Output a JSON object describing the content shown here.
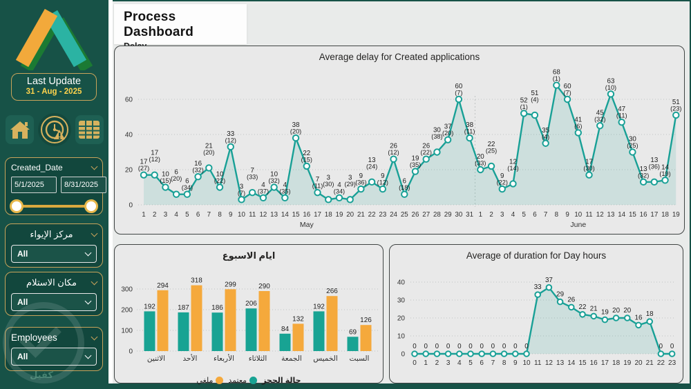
{
  "app": {
    "title": "Process Dashboard",
    "subtitle": "Delay"
  },
  "sidebar": {
    "last_update": {
      "label": "Last Update",
      "date": "31 - Aug - 2025"
    },
    "nav": [
      {
        "icon": "home-icon"
      },
      {
        "icon": "delay-clock-alert-icon"
      },
      {
        "icon": "table-icon"
      }
    ],
    "date_slicer": {
      "label": "Created_Date",
      "start": "5/1/2025",
      "end": "8/31/2025"
    },
    "filters": [
      {
        "label": "مركز الإيواء",
        "value": "All"
      },
      {
        "label": "مكان الاستلام",
        "value": "All"
      },
      {
        "label": "Employees",
        "value": "All"
      }
    ],
    "watermark": "كفيل"
  },
  "colors": {
    "teal": "#18A096",
    "orange": "#F5A93C",
    "gold": "#C9A45B",
    "yellow": "#FFD34D",
    "sidebar_bg": "#175247",
    "main_bg": "#E9EBEA",
    "card_bg": "#E9E9E9"
  },
  "chart_data": [
    {
      "type": "line",
      "title": "Average delay  for Created applications",
      "ylim": [
        0,
        70
      ],
      "yticks": [
        0,
        20,
        40,
        60
      ],
      "grid": true,
      "legend_position": "none",
      "point_format": "value (count)",
      "months": [
        {
          "label": "May",
          "days": [
            1,
            2,
            3,
            4,
            5,
            6,
            7,
            8,
            9,
            10,
            11,
            12,
            13,
            14,
            15,
            16,
            17,
            18,
            19,
            20,
            21,
            22,
            23,
            24,
            25,
            26,
            27,
            28,
            29,
            30,
            31
          ],
          "values": [
            [
              17,
              27
            ],
            [
              17,
              12
            ],
            [
              10,
              15
            ],
            [
              6,
              20
            ],
            [
              6,
              34
            ],
            [
              16,
              32
            ],
            [
              21,
              20
            ],
            [
              10,
              22
            ],
            [
              33,
              12
            ],
            [
              3,
              7
            ],
            [
              7,
              33
            ],
            [
              4,
              37
            ],
            [
              10,
              32
            ],
            [
              4,
              35
            ],
            [
              38,
              20
            ],
            [
              22,
              15
            ],
            [
              7,
              11
            ],
            [
              3,
              30
            ],
            [
              4,
              34
            ],
            [
              3,
              29
            ],
            [
              9,
              36
            ],
            [
              13,
              24
            ],
            [
              9,
              12
            ],
            [
              26,
              12
            ],
            [
              6,
              18
            ],
            [
              19,
              35
            ],
            [
              26,
              22
            ],
            [
              30,
              38
            ],
            [
              37,
              20
            ],
            [
              60,
              7
            ],
            [
              38,
              11
            ]
          ]
        },
        {
          "label": "June",
          "days": [
            1,
            2,
            3,
            4,
            5,
            6,
            7,
            8,
            9,
            10,
            11,
            12,
            13,
            14,
            15,
            16,
            17,
            18,
            19
          ],
          "values": [
            [
              20,
              33
            ],
            [
              22,
              25
            ],
            [
              9,
              22
            ],
            [
              12,
              14
            ],
            [
              52,
              1
            ],
            [
              51,
              4
            ],
            [
              35,
              4
            ],
            [
              68,
              1
            ],
            [
              60,
              7
            ],
            [
              41,
              6
            ],
            [
              17,
              30
            ],
            [
              45,
              32
            ],
            [
              63,
              10
            ],
            [
              47,
              11
            ],
            [
              30,
              25
            ],
            [
              13,
              32
            ],
            [
              13,
              36
            ],
            [
              14,
              19
            ],
            [
              51,
              23
            ]
          ]
        }
      ]
    },
    {
      "type": "bar",
      "title": "ايام الاسبوع",
      "legend_title": "حالة الحجز",
      "legend_position": "bottom",
      "ylim": [
        0,
        340
      ],
      "yticks": [
        0,
        100,
        200,
        300
      ],
      "categories": [
        "الاثنين",
        "الأحد",
        "الأربعاء",
        "الثلاثاء",
        "الجمعة",
        "الخميس",
        "السبت"
      ],
      "series": [
        {
          "name": "معتمد",
          "color": "#18A393",
          "values": [
            192,
            187,
            186,
            206,
            84,
            192,
            69
          ]
        },
        {
          "name": "ملغي",
          "color": "#F5A93C",
          "values": [
            294,
            318,
            299,
            290,
            132,
            266,
            126
          ]
        }
      ]
    },
    {
      "type": "line",
      "title": "Average of duration for Day hours",
      "ylim": [
        0,
        44
      ],
      "yticks": [
        0,
        10,
        20,
        30,
        40
      ],
      "grid": true,
      "hours": [
        0,
        1,
        2,
        3,
        4,
        5,
        6,
        7,
        8,
        9,
        10,
        11,
        12,
        13,
        14,
        15,
        16,
        17,
        18,
        19,
        20,
        21,
        22,
        23
      ],
      "values": [
        0,
        0,
        0,
        0,
        0,
        0,
        0,
        0,
        0,
        0,
        0,
        33,
        37,
        29,
        26,
        22,
        21,
        19,
        20,
        20,
        16,
        18,
        0,
        0
      ]
    }
  ]
}
